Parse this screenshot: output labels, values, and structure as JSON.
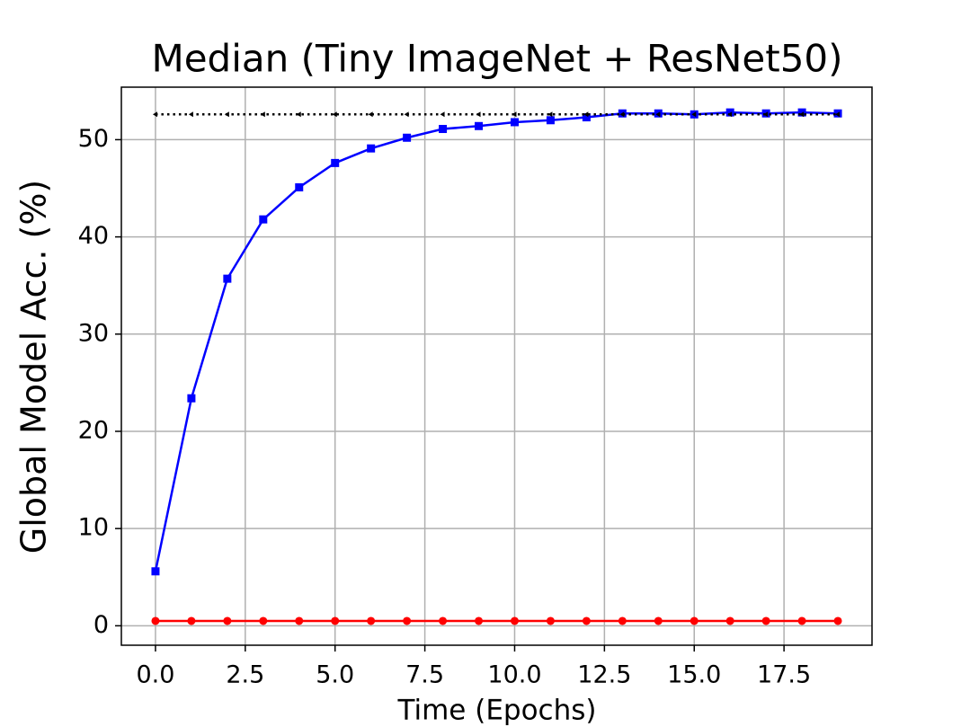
{
  "chart_data": {
    "type": "line",
    "title": "Median (Tiny ImageNet + ResNet50)",
    "xlabel": "Time (Epochs)",
    "ylabel": "Global Model Acc. (%)",
    "x": [
      0,
      1,
      2,
      3,
      4,
      5,
      6,
      7,
      8,
      9,
      10,
      11,
      12,
      13,
      14,
      15,
      16,
      17,
      18,
      19
    ],
    "series": [
      {
        "color": "#0000ff",
        "marker": "square",
        "linestyle": "solid",
        "values": [
          5.6,
          23.4,
          35.7,
          41.8,
          45.1,
          47.6,
          49.1,
          50.2,
          51.1,
          51.4,
          51.8,
          52.0,
          52.3,
          52.7,
          52.7,
          52.6,
          52.8,
          52.7,
          52.8,
          52.7
        ]
      },
      {
        "color": "#ff0000",
        "marker": "circle",
        "linestyle": "solid",
        "values": [
          0.5,
          0.5,
          0.5,
          0.5,
          0.5,
          0.5,
          0.5,
          0.5,
          0.5,
          0.5,
          0.5,
          0.5,
          0.5,
          0.5,
          0.5,
          0.5,
          0.5,
          0.5,
          0.5,
          0.5
        ]
      },
      {
        "color": "#000000",
        "marker": "triangle-left",
        "linestyle": "dotted",
        "values": [
          52.6,
          52.6,
          52.6,
          52.6,
          52.6,
          52.6,
          52.6,
          52.6,
          52.6,
          52.6,
          52.6,
          52.6,
          52.6,
          52.6,
          52.6,
          52.6,
          52.6,
          52.6,
          52.6,
          52.6
        ]
      }
    ],
    "xlim": [
      -0.95,
      19.95
    ],
    "xticks": [
      {
        "value": 0,
        "label": "0.0"
      },
      2.5,
      {
        "value": 5,
        "label": "5.0"
      },
      7.5,
      {
        "value": 10,
        "label": "10.0"
      },
      12.5,
      {
        "value": 15,
        "label": "15.0"
      },
      17.5
    ],
    "ylim": [
      -2,
      55.4
    ],
    "yticks": [
      0,
      10,
      20,
      30,
      40,
      50
    ],
    "grid": true
  }
}
